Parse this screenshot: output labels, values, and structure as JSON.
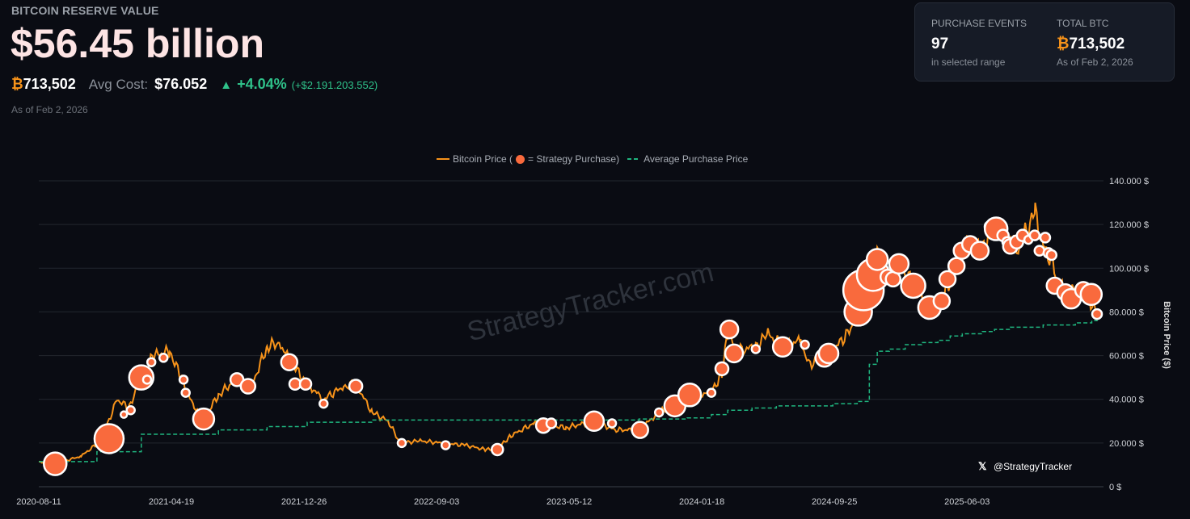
{
  "header": {
    "label": "BITCOIN RESERVE VALUE",
    "value": "$56.45 billion",
    "btc_symbol": "₿",
    "btc": "713,502",
    "avg_cost_label": "Avg Cost:",
    "avg_cost": "$76.052",
    "change_arrow": "▲",
    "change_pct": "+4.04%",
    "change_abs": "(+$2.191.203.552)",
    "as_of": "As of Feb 2, 2026"
  },
  "card": {
    "events_label": "PURCHASE EVENTS",
    "events": "97",
    "events_sub": "in selected range",
    "total_label": "TOTAL BTC",
    "total_symbol": "₿",
    "total": "713,502",
    "total_sub": "As of Feb 2, 2026"
  },
  "watermark": "StrategyTracker.com",
  "handle": "@StrategyTracker",
  "chart_data": {
    "type": "line",
    "legend": {
      "price": "Bitcoin Price (",
      "purchase": "= Strategy Purchase)",
      "avg": "Average Purchase Price",
      "placement": "top-center"
    },
    "ylabel": "Bitcoin Price ($)",
    "ylim": [
      0,
      140000
    ],
    "yticks": [
      "0 $",
      "20.000 $",
      "40.000 $",
      "60.000 $",
      "80.000 $",
      "100.000 $",
      "120.000 $",
      "140.000 $"
    ],
    "x_unit": "days since 2020-08-11",
    "xlim": [
      0,
      2003
    ],
    "xticks": [
      {
        "day": 0,
        "label": "2020-08-11"
      },
      {
        "day": 251,
        "label": "2021-04-19"
      },
      {
        "day": 502,
        "label": "2021-12-26"
      },
      {
        "day": 753,
        "label": "2022-09-03"
      },
      {
        "day": 1004,
        "label": "2023-05-12"
      },
      {
        "day": 1255,
        "label": "2024-01-18"
      },
      {
        "day": 1506,
        "label": "2024-09-25"
      },
      {
        "day": 1757,
        "label": "2025-06-03"
      }
    ],
    "colors": {
      "price": "#f7931a",
      "bubble": "#f96a3d",
      "avg": "#1fb57f"
    },
    "price": [
      [
        0,
        11500
      ],
      [
        31,
        10500
      ],
      [
        80,
        14000
      ],
      [
        118,
        21000
      ],
      [
        148,
        40000
      ],
      [
        171,
        36000
      ],
      [
        194,
        51000
      ],
      [
        217,
        60000
      ],
      [
        248,
        62000
      ],
      [
        271,
        49000
      ],
      [
        294,
        36000
      ],
      [
        312,
        31000
      ],
      [
        340,
        42000
      ],
      [
        378,
        50000
      ],
      [
        401,
        45000
      ],
      [
        432,
        64000
      ],
      [
        455,
        66000
      ],
      [
        477,
        57000
      ],
      [
        508,
        47000
      ],
      [
        539,
        40000
      ],
      [
        577,
        46000
      ],
      [
        600,
        47000
      ],
      [
        631,
        34000
      ],
      [
        661,
        30000
      ],
      [
        684,
        20000
      ],
      [
        722,
        21000
      ],
      [
        761,
        20000
      ],
      [
        807,
        19000
      ],
      [
        845,
        17000
      ],
      [
        868,
        17000
      ],
      [
        891,
        23000
      ],
      [
        937,
        29000
      ],
      [
        967,
        28000
      ],
      [
        998,
        27000
      ],
      [
        1051,
        30000
      ],
      [
        1090,
        26000
      ],
      [
        1136,
        26000
      ],
      [
        1174,
        34000
      ],
      [
        1204,
        37000
      ],
      [
        1235,
        42000
      ],
      [
        1273,
        43000
      ],
      [
        1293,
        52000
      ],
      [
        1304,
        71000
      ],
      [
        1319,
        62000
      ],
      [
        1357,
        64000
      ],
      [
        1380,
        70000
      ],
      [
        1408,
        64000
      ],
      [
        1442,
        67000
      ],
      [
        1457,
        56000
      ],
      [
        1495,
        60000
      ],
      [
        1534,
        71000
      ],
      [
        1549,
        80000
      ],
      [
        1572,
        100000
      ],
      [
        1587,
        106000
      ],
      [
        1610,
        95000
      ],
      [
        1625,
        103000
      ],
      [
        1656,
        92000
      ],
      [
        1687,
        82000
      ],
      [
        1710,
        84000
      ],
      [
        1725,
        95000
      ],
      [
        1748,
        108000
      ],
      [
        1763,
        112000
      ],
      [
        1786,
        108000
      ],
      [
        1801,
        118000
      ],
      [
        1824,
        117000
      ],
      [
        1855,
        110000
      ],
      [
        1886,
        125000
      ],
      [
        1901,
        110000
      ],
      [
        1916,
        104000
      ],
      [
        1931,
        93000
      ],
      [
        1947,
        88000
      ],
      [
        1970,
        90000
      ],
      [
        1985,
        88000
      ],
      [
        2003,
        78000
      ]
    ],
    "avg": [
      [
        0,
        11500
      ],
      [
        80,
        11500
      ],
      [
        110,
        16000
      ],
      [
        194,
        24000
      ],
      [
        340,
        26000
      ],
      [
        432,
        27500
      ],
      [
        508,
        29500
      ],
      [
        630,
        30500
      ],
      [
        1136,
        31000
      ],
      [
        1227,
        31500
      ],
      [
        1273,
        33000
      ],
      [
        1304,
        35000
      ],
      [
        1350,
        36000
      ],
      [
        1396,
        37000
      ],
      [
        1503,
        38000
      ],
      [
        1549,
        39000
      ],
      [
        1572,
        56000
      ],
      [
        1587,
        62000
      ],
      [
        1610,
        63000
      ],
      [
        1640,
        65000
      ],
      [
        1671,
        66000
      ],
      [
        1702,
        67000
      ],
      [
        1725,
        69000
      ],
      [
        1748,
        70000
      ],
      [
        1786,
        71000
      ],
      [
        1809,
        72000
      ],
      [
        1839,
        73000
      ],
      [
        1901,
        74000
      ],
      [
        1962,
        75000
      ],
      [
        1993,
        76000
      ],
      [
        2003,
        76500
      ]
    ],
    "purchases": [
      [
        31,
        10500,
        14
      ],
      [
        133,
        22000,
        18
      ],
      [
        161,
        33000,
        4
      ],
      [
        174,
        35000,
        5
      ],
      [
        194,
        50000,
        15
      ],
      [
        205,
        49000,
        5
      ],
      [
        213,
        57000,
        5
      ],
      [
        236,
        59000,
        5
      ],
      [
        274,
        49000,
        5
      ],
      [
        278,
        43000,
        5
      ],
      [
        312,
        31000,
        13
      ],
      [
        375,
        49000,
        8
      ],
      [
        396,
        46000,
        9
      ],
      [
        474,
        57000,
        10
      ],
      [
        485,
        47000,
        7
      ],
      [
        505,
        47000,
        7
      ],
      [
        539,
        38000,
        5
      ],
      [
        600,
        46000,
        8
      ],
      [
        687,
        20000,
        5
      ],
      [
        770,
        19000,
        5
      ],
      [
        868,
        17000,
        7
      ],
      [
        955,
        28000,
        9
      ],
      [
        970,
        29000,
        6
      ],
      [
        1051,
        30000,
        12
      ],
      [
        1085,
        29000,
        5
      ],
      [
        1138,
        26000,
        10
      ],
      [
        1174,
        34000,
        5
      ],
      [
        1204,
        37000,
        13
      ],
      [
        1232,
        42000,
        14
      ],
      [
        1273,
        43000,
        5
      ],
      [
        1293,
        54000,
        8
      ],
      [
        1307,
        72000,
        11
      ],
      [
        1316,
        61000,
        11
      ],
      [
        1357,
        63000,
        5
      ],
      [
        1408,
        64000,
        12
      ],
      [
        1450,
        65000,
        5
      ],
      [
        1487,
        59000,
        11
      ],
      [
        1495,
        61000,
        12
      ],
      [
        1551,
        80000,
        17
      ],
      [
        1561,
        90000,
        25
      ],
      [
        1579,
        97000,
        20
      ],
      [
        1587,
        104000,
        13
      ],
      [
        1607,
        96000,
        9
      ],
      [
        1617,
        95000,
        9
      ],
      [
        1628,
        102000,
        12
      ],
      [
        1655,
        92000,
        15
      ],
      [
        1686,
        82000,
        14
      ],
      [
        1709,
        85000,
        10
      ],
      [
        1720,
        95000,
        10
      ],
      [
        1737,
        101000,
        10
      ],
      [
        1747,
        108000,
        10
      ],
      [
        1763,
        111000,
        10
      ],
      [
        1781,
        108000,
        11
      ],
      [
        1801,
        119000,
        7
      ],
      [
        1812,
        118000,
        14
      ],
      [
        1825,
        115000,
        7
      ],
      [
        1833,
        112000,
        6
      ],
      [
        1839,
        110000,
        9
      ],
      [
        1851,
        112000,
        8
      ],
      [
        1862,
        115000,
        7
      ],
      [
        1873,
        113000,
        5
      ],
      [
        1885,
        115000,
        6
      ],
      [
        1894,
        108000,
        6
      ],
      [
        1905,
        114000,
        6
      ],
      [
        1911,
        107000,
        6
      ],
      [
        1917,
        106000,
        6
      ],
      [
        1923,
        92000,
        10
      ],
      [
        1943,
        89000,
        10
      ],
      [
        1954,
        86000,
        12
      ],
      [
        1977,
        90000,
        10
      ],
      [
        1992,
        88000,
        13
      ],
      [
        2003,
        79000,
        6
      ]
    ]
  }
}
